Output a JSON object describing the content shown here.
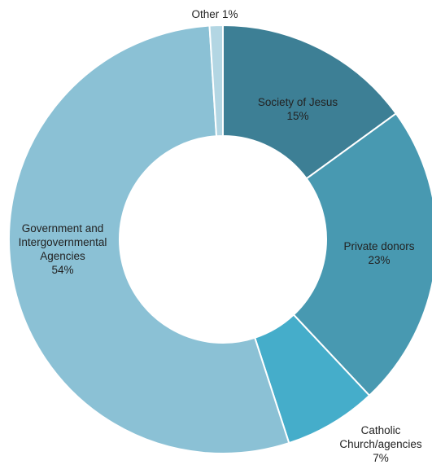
{
  "chart_data": {
    "type": "pie",
    "variant": "donut",
    "title": "",
    "legend": "none",
    "slices": [
      {
        "name": "Society of Jesus",
        "value": 15,
        "label_lines": [
          "Society of Jesus",
          "15%"
        ],
        "color": "#3d7f95"
      },
      {
        "name": "Private donors",
        "value": 23,
        "label_lines": [
          "Private donors",
          "23%"
        ],
        "color": "#4899b1"
      },
      {
        "name": "Catholic Church/agencies",
        "value": 7,
        "label_lines": [
          "Catholic",
          "Church/agencies",
          "7%"
        ],
        "color": "#45adca"
      },
      {
        "name": "Government and Intergovernmental Agencies",
        "value": 54,
        "label_lines": [
          "Government and",
          "Intergovernmental",
          "Agencies",
          "54%"
        ],
        "color": "#8bc1d5"
      },
      {
        "name": "Other",
        "value": 1,
        "label_lines": [
          "Other 1%"
        ],
        "color": "#b3d6e3"
      }
    ]
  }
}
